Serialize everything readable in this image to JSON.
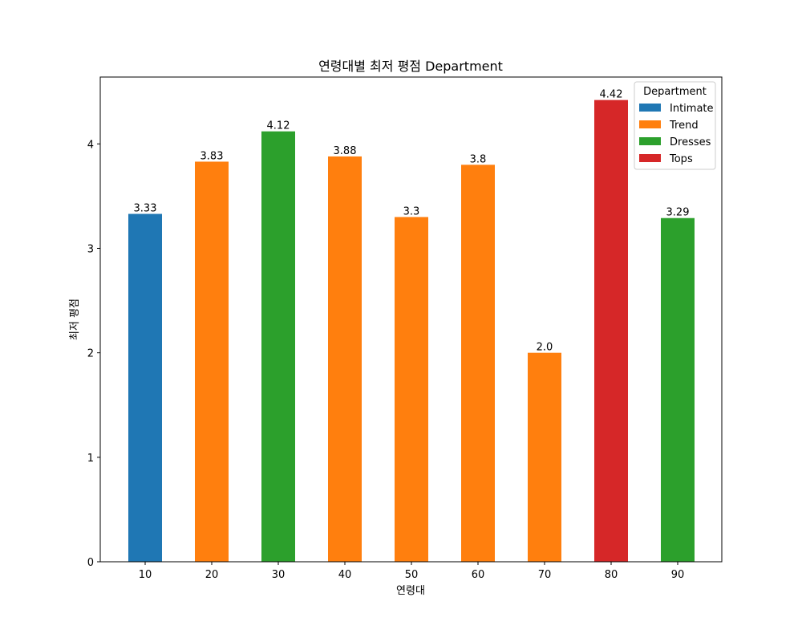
{
  "chart_data": {
    "type": "bar",
    "title": "연령대별 최저 평점 Department",
    "xlabel": "연령대",
    "ylabel": "최저 평점",
    "categories": [
      "10",
      "20",
      "30",
      "40",
      "50",
      "60",
      "70",
      "80",
      "90"
    ],
    "values": [
      3.33,
      3.83,
      4.12,
      3.88,
      3.3,
      3.8,
      2.0,
      4.42,
      3.29
    ],
    "value_labels": [
      "3.33",
      "3.83",
      "4.12",
      "3.88",
      "3.3",
      "3.8",
      "2.0",
      "4.42",
      "3.29"
    ],
    "departments": [
      "Intimate",
      "Trend",
      "Dresses",
      "Trend",
      "Trend",
      "Trend",
      "Trend",
      "Tops",
      "Dresses"
    ],
    "ylim": [
      0,
      4.64
    ],
    "yticks": [
      0,
      1,
      2,
      3,
      4
    ],
    "grid": false,
    "legend": {
      "title": "Department",
      "placement": "top-right",
      "entries": [
        {
          "name": "Intimate",
          "color": "#1f77b4"
        },
        {
          "name": "Trend",
          "color": "#ff7f0e"
        },
        {
          "name": "Dresses",
          "color": "#2ca02c"
        },
        {
          "name": "Tops",
          "color": "#d62728"
        }
      ]
    }
  }
}
